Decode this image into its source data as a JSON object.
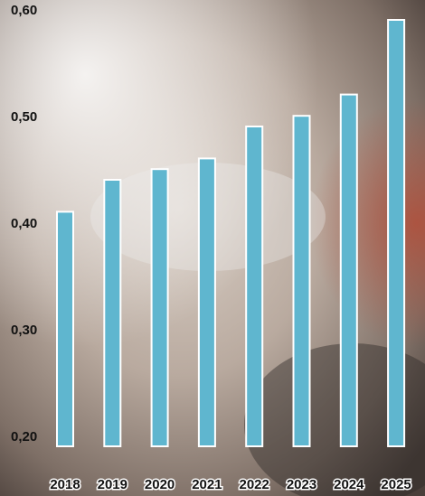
{
  "chart_data": {
    "type": "bar",
    "categories": [
      "2018",
      "2019",
      "2020",
      "2021",
      "2022",
      "2023",
      "2024",
      "2025"
    ],
    "values": [
      0.42,
      0.45,
      0.46,
      0.47,
      0.5,
      0.51,
      0.53,
      0.6
    ],
    "title": "",
    "xlabel": "",
    "ylabel": "",
    "ylim": [
      0.2,
      0.6
    ],
    "yticks": [
      0.2,
      0.3,
      0.4,
      0.5,
      0.6
    ],
    "ytick_labels": [
      "0,20",
      "0,30",
      "0,40",
      "0,50",
      "0,60"
    ],
    "grid": false,
    "legend": "none",
    "colors": {
      "bar_fill": "#5fb6cf",
      "bar_outline": "#ffffff",
      "label_text": "#111111"
    }
  }
}
